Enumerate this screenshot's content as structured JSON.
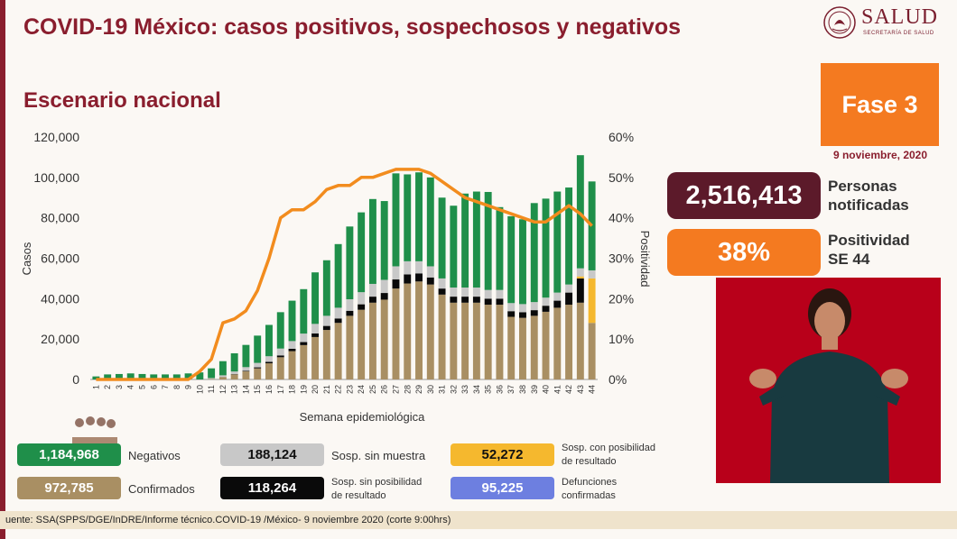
{
  "header": {
    "title": "COVID-19 México: casos positivos, sospechosos y negativos",
    "subtitle": "Escenario nacional",
    "logo_text": "SALUD",
    "logo_sub": "SECRETARÍA DE SALUD"
  },
  "side": {
    "phase": "Fase 3",
    "date": "9 noviembre, 2020",
    "notified_value": "2,516,413",
    "notified_label_1": "Personas",
    "notified_label_2": "notificadas",
    "positivity_value": "38%",
    "positivity_label_1": "Positividad",
    "positivity_label_2": "SE 44"
  },
  "legend": {
    "negativos_value": "1,184,968",
    "negativos_label": "Negativos",
    "confirmados_value": "972,785",
    "confirmados_label": "Confirmados",
    "sosp_sin_muestra_value": "188,124",
    "sosp_sin_muestra_label": "Sosp. sin muestra",
    "sosp_sin_pos_value": "118,264",
    "sosp_sin_pos_label_1": "Sosp. sin posibilidad",
    "sosp_sin_pos_label_2": "de resultado",
    "sosp_con_pos_value": "52,272",
    "sosp_con_pos_label_1": "Sosp. con posibilidad",
    "sosp_con_pos_label_2": "de resultado",
    "defunciones_value": "95,225",
    "defunciones_label_1": "Defunciones",
    "defunciones_label_2": "confirmadas"
  },
  "colors": {
    "confirmados": "#a98f63",
    "sosp_sin_posibilidad": "#0a0a0a",
    "sosp_con_posibilidad": "#f5b82e",
    "sosp_sin_muestra": "#c8c8c8",
    "negativos": "#1f8f4a",
    "defunciones": "#6d7fe0",
    "positividad": "#f28c1e",
    "title": "#8a1e2e"
  },
  "footer": "uente: SSA(SPPS/DGE/InDRE/Informe técnico.COVID-19 /México- 9 noviembre 2020 (corte 9:00hrs)",
  "chart_data": {
    "type": "bar",
    "stacked": true,
    "xlabel": "Semana epidemiológica",
    "ylabel": "Casos",
    "y2label": "Positividad",
    "ylim": [
      0,
      120000
    ],
    "y2lim": [
      0,
      60
    ],
    "yticks": [
      "0",
      "20,000",
      "40,000",
      "60,000",
      "80,000",
      "100,000",
      "120,000"
    ],
    "y2ticks": [
      "0%",
      "10%",
      "20%",
      "30%",
      "40%",
      "50%",
      "60%"
    ],
    "categories": [
      "1",
      "2",
      "3",
      "4",
      "5",
      "6",
      "7",
      "8",
      "9",
      "10",
      "11",
      "12",
      "13",
      "14",
      "15",
      "16",
      "17",
      "18",
      "19",
      "20",
      "21",
      "22",
      "23",
      "24",
      "25",
      "26",
      "27",
      "28",
      "29",
      "30",
      "31",
      "32",
      "33",
      "34",
      "35",
      "36",
      "37",
      "38",
      "39",
      "40",
      "41",
      "42",
      "43",
      "44"
    ],
    "series": [
      {
        "name": "Confirmados",
        "values": [
          0,
          0,
          0,
          0,
          0,
          0,
          0,
          0,
          0,
          0,
          300,
          1200,
          2500,
          4000,
          5500,
          8000,
          11000,
          14000,
          17000,
          21000,
          24500,
          28000,
          31500,
          34500,
          38000,
          39500,
          45000,
          47500,
          48500,
          47000,
          42000,
          38000,
          38000,
          38000,
          37000,
          37000,
          31000,
          30500,
          31500,
          33500,
          35500,
          37000,
          38000,
          28000
        ]
      },
      {
        "name": "Sosp. sin posibilidad",
        "values": [
          0,
          0,
          0,
          0,
          0,
          0,
          0,
          0,
          0,
          0,
          0,
          50,
          150,
          300,
          500,
          700,
          900,
          1200,
          1500,
          1800,
          2000,
          2200,
          2500,
          2700,
          3000,
          3300,
          4500,
          4500,
          4000,
          3500,
          3000,
          3000,
          3000,
          3000,
          3000,
          3000,
          2800,
          2800,
          2800,
          3000,
          3500,
          6000,
          12000,
          0
        ]
      },
      {
        "name": "Sosp. con posibilidad",
        "values": [
          0,
          0,
          0,
          0,
          0,
          0,
          0,
          0,
          0,
          0,
          0,
          0,
          0,
          0,
          0,
          0,
          0,
          0,
          0,
          0,
          0,
          0,
          0,
          0,
          0,
          0,
          0,
          0,
          0,
          0,
          0,
          0,
          0,
          0,
          0,
          0,
          0,
          0,
          0,
          0,
          0,
          0,
          1000,
          22000
        ]
      },
      {
        "name": "Sosp. sin muestra",
        "values": [
          0,
          0,
          0,
          0,
          0,
          0,
          0,
          0,
          0,
          0,
          400,
          800,
          1300,
          1800,
          2200,
          2800,
          3400,
          3800,
          4200,
          4700,
          5000,
          5300,
          5700,
          6000,
          6300,
          6500,
          6500,
          6500,
          6000,
          5500,
          5000,
          4500,
          4500,
          4500,
          4300,
          4300,
          4000,
          4000,
          4000,
          4000,
          4000,
          4000,
          4000,
          4000
        ]
      },
      {
        "name": "Negativos",
        "values": [
          1500,
          2500,
          2700,
          3000,
          2700,
          2500,
          2500,
          2500,
          3000,
          3500,
          4800,
          7000,
          9000,
          11000,
          13500,
          15500,
          18000,
          20000,
          22000,
          25500,
          27500,
          31500,
          36000,
          39500,
          42000,
          39000,
          46000,
          43000,
          44000,
          44000,
          40000,
          40500,
          46500,
          47500,
          48500,
          41000,
          43000,
          42000,
          49000,
          49000,
          50000,
          48000,
          56000,
          44000
        ]
      }
    ],
    "line": {
      "name": "Positividad",
      "axis": "y2",
      "values": [
        0,
        0,
        0,
        0,
        0,
        0,
        0,
        0,
        0,
        2,
        5,
        14,
        15,
        17,
        22,
        30,
        40,
        42,
        42,
        44,
        47,
        48,
        48,
        50,
        50,
        51,
        52,
        52,
        52,
        51,
        49,
        47,
        45,
        44,
        43,
        42,
        41,
        40,
        39,
        39,
        41,
        43,
        41,
        38
      ]
    },
    "grid": false,
    "legend": "bottom"
  }
}
